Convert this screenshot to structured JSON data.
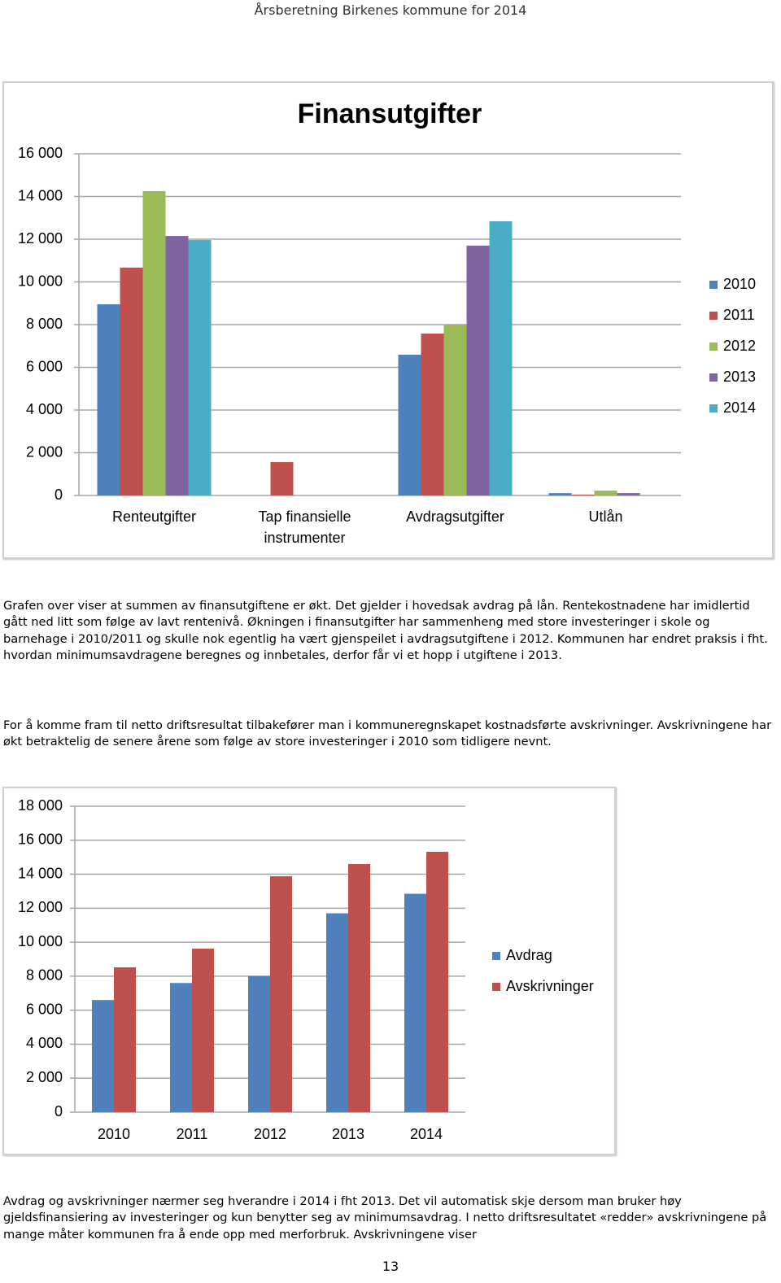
{
  "header": {
    "title": "Årsberetning Birkenes kommune for 2014"
  },
  "chart_data": [
    {
      "type": "bar",
      "title": "Finansutgifter",
      "categories": [
        "Renteutgifter",
        "Tap finansielle instrumenter",
        "Avdragsutgifter",
        "Utlån"
      ],
      "series": [
        {
          "name": "2010",
          "color": "#4f81bd",
          "values": [
            8950,
            0,
            6590,
            110
          ]
        },
        {
          "name": "2011",
          "color": "#c0504d",
          "values": [
            10670,
            1560,
            7580,
            40
          ]
        },
        {
          "name": "2012",
          "color": "#9bbb59",
          "values": [
            14250,
            0,
            8000,
            230
          ]
        },
        {
          "name": "2013",
          "color": "#8064a2",
          "values": [
            12150,
            0,
            11700,
            110
          ]
        },
        {
          "name": "2014",
          "color": "#4bacc6",
          "values": [
            11960,
            0,
            12840,
            0
          ]
        }
      ],
      "ylim": [
        0,
        16000
      ],
      "yticks": [
        0,
        {
          "value": 2000,
          "label": "2 000"
        },
        {
          "value": 4000,
          "label": "4 000"
        },
        {
          "value": 6000,
          "label": "6 000"
        },
        {
          "value": 8000,
          "label": "8 000"
        },
        {
          "value": 10000,
          "label": "10 000"
        },
        {
          "value": 12000,
          "label": "12 000"
        },
        {
          "value": 14000,
          "label": "14 000"
        },
        {
          "value": 16000,
          "label": "16 000"
        }
      ],
      "grid": true,
      "legend": "right"
    },
    {
      "type": "bar",
      "categories": [
        "2010",
        "2011",
        "2012",
        "2013",
        "2014"
      ],
      "series": [
        {
          "name": "Avdrag",
          "color": "#4f81bd",
          "values": [
            6600,
            7600,
            8000,
            11700,
            12850
          ]
        },
        {
          "name": "Avskrivninger",
          "color": "#c0504d",
          "values": [
            8520,
            9620,
            13880,
            14600,
            15320
          ]
        }
      ],
      "ylim": [
        0,
        18000
      ],
      "yticks": [
        0,
        {
          "value": 2000,
          "label": "2 000"
        },
        {
          "value": 4000,
          "label": "4 000"
        },
        {
          "value": 6000,
          "label": "6 000"
        },
        {
          "value": 8000,
          "label": "8 000"
        },
        {
          "value": 10000,
          "label": "10 000"
        },
        {
          "value": 12000,
          "label": "12 000"
        },
        {
          "value": 14000,
          "label": "14 000"
        },
        {
          "value": 16000,
          "label": "16 000"
        },
        {
          "value": 18000,
          "label": "18 000"
        }
      ],
      "grid": true,
      "legend": "right"
    }
  ],
  "paragraphs": [
    "Grafen over viser at  summen av finansutgiftene er økt. Det gjelder i hovedsak avdrag på lån. Rentekostnadene har imidlertid gått ned litt som følge av lavt rentenivå. Økningen i finansutgifter har sammenheng med store investeringer i skole og barnehage i 2010/2011 og skulle nok egentlig ha vært gjenspeilet i avdragsutgiftene i 2012. Kommunen har endret praksis i fht. hvordan minimumsavdragene beregnes og innbetales, derfor får vi et hopp i utgiftene i 2013.",
    "For å komme fram til netto driftsresultat tilbakefører man i kommuneregnskapet kostnadsførte avskrivninger. Avskrivningene har økt betraktelig de senere årene som følge av store investeringer i 2010 som tidligere nevnt.",
    "Avdrag og avskrivninger nærmer seg hverandre i 2014 i fht 2013. Det vil automatisk skje dersom man bruker høy gjeldsfinansiering av investeringer og kun benytter seg av minimumsavdrag. I netto driftsresultatet «redder» avskrivningene på mange måter kommunen fra å ende opp med merforbruk. Avskrivningene viser"
  ],
  "page_number": "13"
}
